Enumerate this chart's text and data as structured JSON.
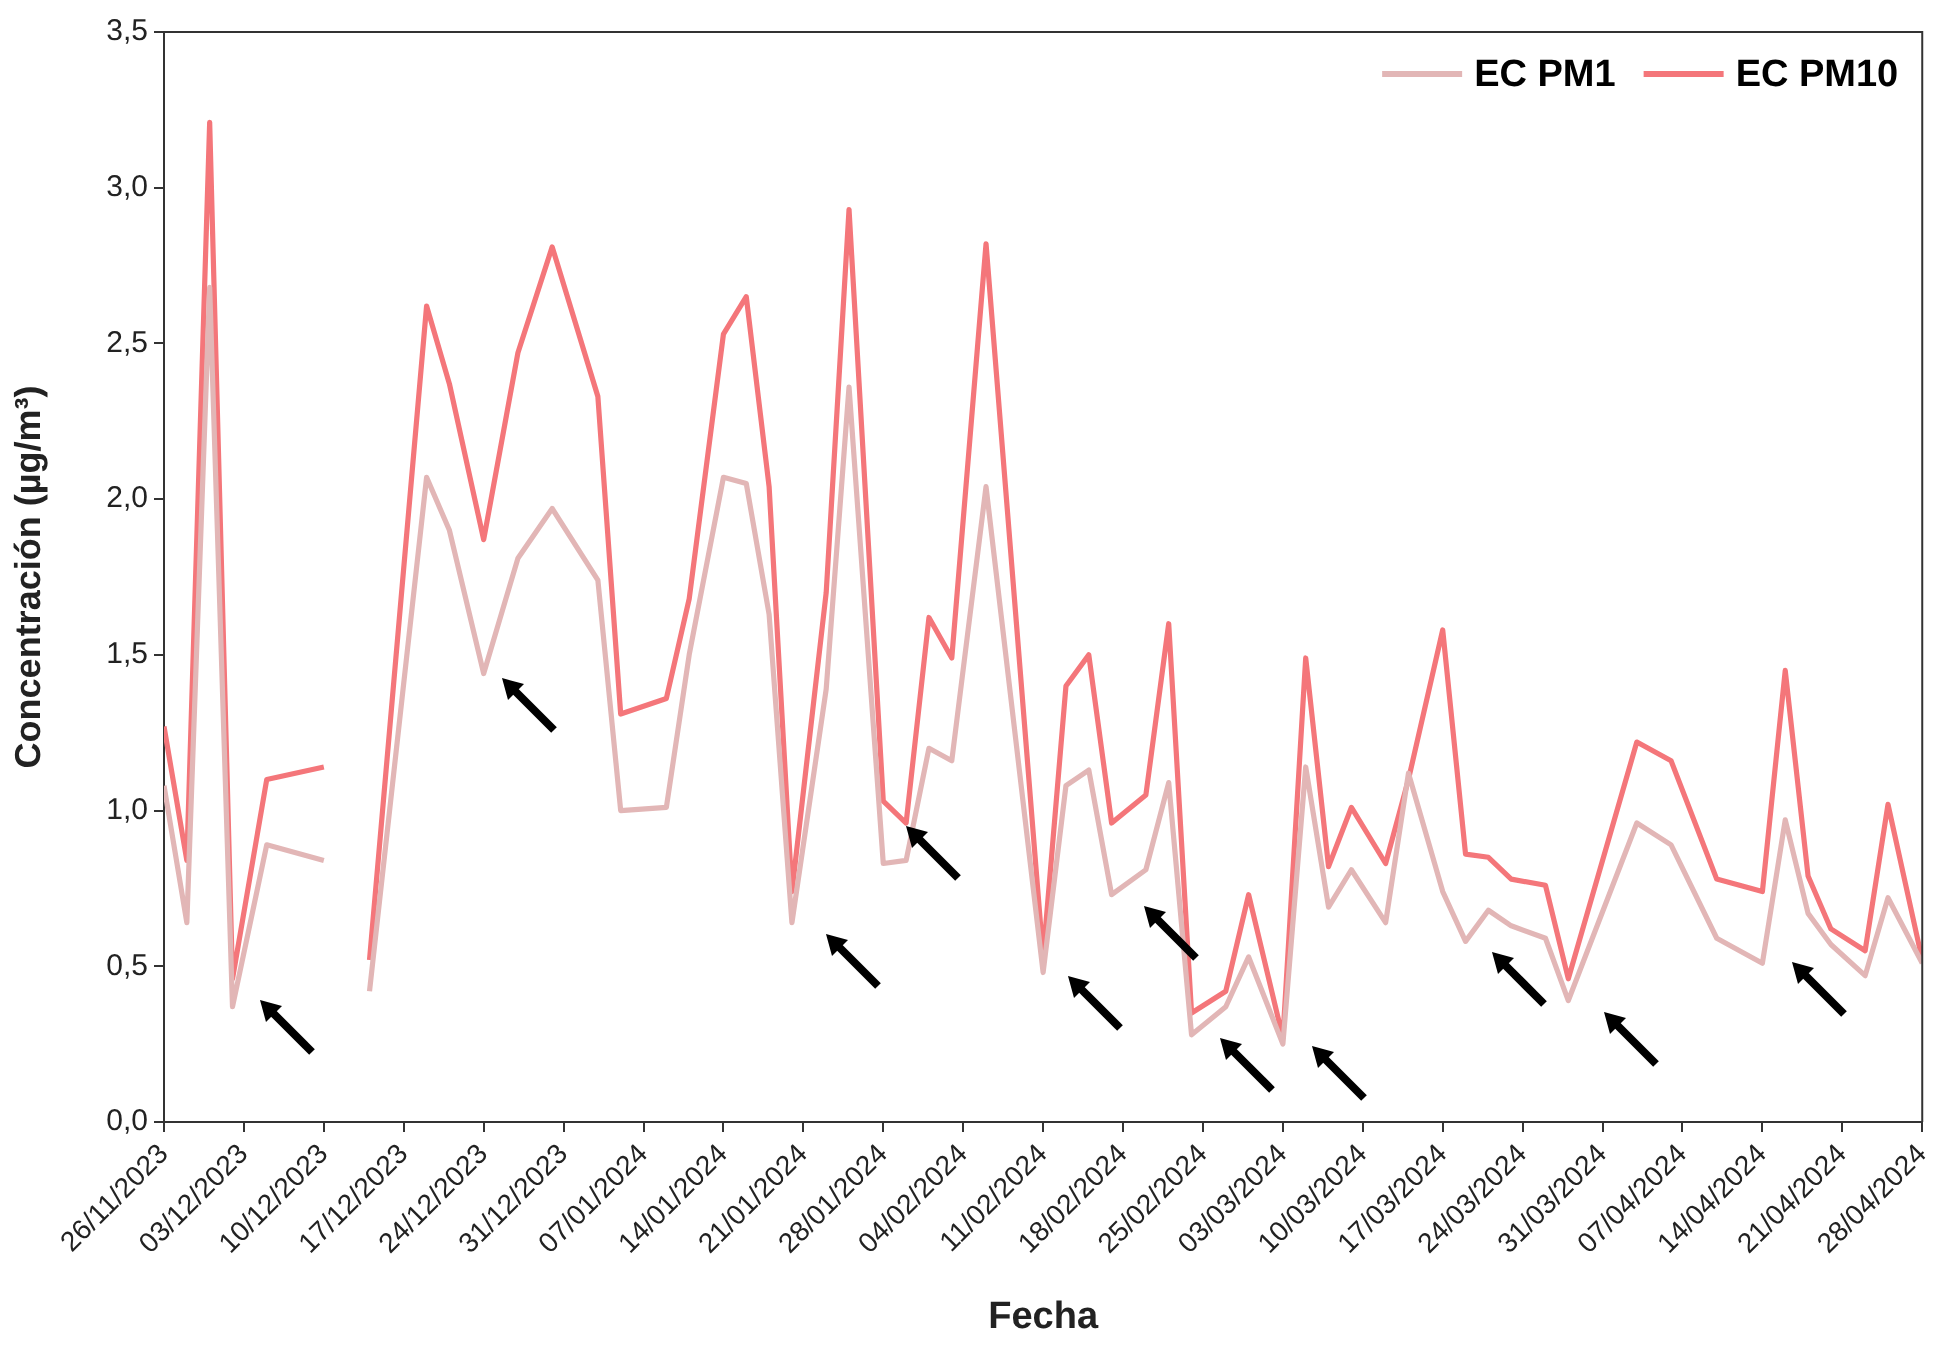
{
  "chart_data": {
    "type": "line",
    "xlabel": "Fecha",
    "ylabel": "Concentración (µg/m³)",
    "x": [
      "2023-11-26",
      "2023-11-28",
      "2023-11-30",
      "2023-12-02",
      "2023-12-05",
      "2023-12-10",
      "2023-12-12",
      "2023-12-14",
      "2023-12-19",
      "2023-12-21",
      "2023-12-24",
      "2023-12-27",
      "2023-12-30",
      "2024-01-03",
      "2024-01-05",
      "2024-01-09",
      "2024-01-11",
      "2024-01-14",
      "2024-01-16",
      "2024-01-18",
      "2024-01-20",
      "2024-01-23",
      "2024-01-25",
      "2024-01-28",
      "2024-01-30",
      "2024-02-01",
      "2024-02-03",
      "2024-02-06",
      "2024-02-11",
      "2024-02-13",
      "2024-02-15",
      "2024-02-17",
      "2024-02-20",
      "2024-02-22",
      "2024-02-24",
      "2024-02-27",
      "2024-02-29",
      "2024-03-03",
      "2024-03-05",
      "2024-03-07",
      "2024-03-09",
      "2024-03-12",
      "2024-03-14",
      "2024-03-17",
      "2024-03-19",
      "2024-03-21",
      "2024-03-23",
      "2024-03-26",
      "2024-03-28",
      "2024-04-03",
      "2024-04-06",
      "2024-04-10",
      "2024-04-14",
      "2024-04-16",
      "2024-04-18",
      "2024-04-20",
      "2024-04-23",
      "2024-04-25",
      "2024-04-28"
    ],
    "series": [
      {
        "name": "EC PM1",
        "color": "#e2b6b6",
        "values": [
          1.08,
          0.64,
          2.68,
          0.37,
          0.89,
          0.84,
          null,
          0.42,
          2.07,
          1.9,
          1.44,
          1.81,
          1.97,
          1.74,
          1.0,
          1.01,
          1.5,
          2.07,
          2.05,
          1.63,
          0.64,
          1.39,
          2.36,
          0.83,
          0.84,
          1.2,
          1.16,
          2.04,
          0.48,
          1.08,
          1.13,
          0.73,
          0.81,
          1.09,
          0.28,
          0.37,
          0.53,
          0.25,
          1.14,
          0.69,
          0.81,
          0.64,
          1.12,
          0.74,
          0.58,
          0.68,
          0.63,
          0.59,
          0.39,
          0.96,
          0.89,
          0.59,
          0.51,
          0.97,
          0.67,
          0.57,
          0.47,
          0.72,
          0.51
        ]
      },
      {
        "name": "EC PM10",
        "color": "#f4767a",
        "values": [
          1.27,
          0.84,
          3.21,
          0.46,
          1.1,
          1.14,
          null,
          0.52,
          2.62,
          2.37,
          1.87,
          2.47,
          2.81,
          2.33,
          1.31,
          1.36,
          1.68,
          2.53,
          2.65,
          2.04,
          0.74,
          1.7,
          2.93,
          1.03,
          0.96,
          1.62,
          1.49,
          2.82,
          0.53,
          1.4,
          1.5,
          0.96,
          1.05,
          1.6,
          0.35,
          0.42,
          0.73,
          0.27,
          1.49,
          0.82,
          1.01,
          0.83,
          1.1,
          1.58,
          0.86,
          0.85,
          0.78,
          0.76,
          0.46,
          1.22,
          1.16,
          0.78,
          0.74,
          1.45,
          0.79,
          0.62,
          0.55,
          1.02,
          0.52
        ]
      }
    ],
    "xlim": [
      "2023-11-26",
      "2024-04-28"
    ],
    "xticks": [
      {
        "value": "2023-11-26",
        "label": "26/11/2023"
      },
      {
        "value": "2023-12-03",
        "label": "03/12/2023"
      },
      {
        "value": "2023-12-10",
        "label": "10/12/2023"
      },
      {
        "value": "2023-12-17",
        "label": "17/12/2023"
      },
      {
        "value": "2023-12-24",
        "label": "24/12/2023"
      },
      {
        "value": "2023-12-31",
        "label": "31/12/2023"
      },
      {
        "value": "2024-01-07",
        "label": "07/01/2024"
      },
      {
        "value": "2024-01-14",
        "label": "14/01/2024"
      },
      {
        "value": "2024-01-21",
        "label": "21/01/2024"
      },
      {
        "value": "2024-01-28",
        "label": "28/01/2024"
      },
      {
        "value": "2024-02-04",
        "label": "04/02/2024"
      },
      {
        "value": "2024-02-11",
        "label": "11/02/2024"
      },
      {
        "value": "2024-02-18",
        "label": "18/02/2024"
      },
      {
        "value": "2024-02-25",
        "label": "25/02/2024"
      },
      {
        "value": "2024-03-03",
        "label": "03/03/2024"
      },
      {
        "value": "2024-03-10",
        "label": "10/03/2024"
      },
      {
        "value": "2024-03-17",
        "label": "17/03/2024"
      },
      {
        "value": "2024-03-24",
        "label": "24/03/2024"
      },
      {
        "value": "2024-03-31",
        "label": "31/03/2024"
      },
      {
        "value": "2024-04-07",
        "label": "07/04/2024"
      },
      {
        "value": "2024-04-14",
        "label": "14/04/2024"
      },
      {
        "value": "2024-04-21",
        "label": "21/04/2024"
      },
      {
        "value": "2024-04-28",
        "label": "28/04/2024"
      }
    ],
    "ylim": [
      0,
      3.5
    ],
    "yticks": [
      {
        "value": 0,
        "label": "0,0"
      },
      {
        "value": 0.5,
        "label": "0,5"
      },
      {
        "value": 1,
        "label": "1,0"
      },
      {
        "value": 1.5,
        "label": "1,5"
      },
      {
        "value": 2,
        "label": "2,0"
      },
      {
        "value": 2.5,
        "label": "2,5"
      },
      {
        "value": 3,
        "label": "3,0"
      },
      {
        "value": 3.5,
        "label": "3,5"
      }
    ],
    "grid": false,
    "legend": "top right",
    "marker": "none",
    "line_style": "solid"
  }
}
